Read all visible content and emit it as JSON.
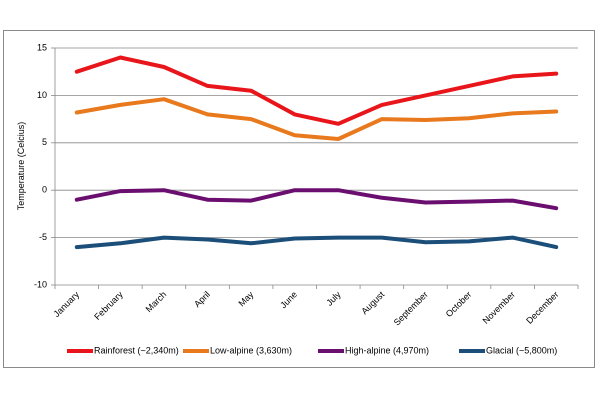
{
  "chart_data": {
    "type": "line",
    "title": "",
    "xlabel": "",
    "ylabel": "Temperature (Celcius)",
    "ylim": [
      -10,
      15
    ],
    "yticks": [
      -10,
      -5,
      0,
      5,
      10,
      15
    ],
    "grid": "horizontal",
    "legend_position": "bottom",
    "categories": [
      "January",
      "February",
      "March",
      "April",
      "May",
      "June",
      "July",
      "August",
      "September",
      "October",
      "November",
      "December"
    ],
    "series": [
      {
        "name": "Rainforest (~2,340m)",
        "color": "#e8161b",
        "values": [
          12.5,
          14.0,
          13.0,
          11.0,
          10.5,
          8.0,
          7.0,
          9.0,
          10.0,
          11.0,
          12.0,
          12.3
        ]
      },
      {
        "name": "Low-alpine (3,630m)",
        "color": "#e8791d",
        "values": [
          8.2,
          9.0,
          9.6,
          8.0,
          7.5,
          5.8,
          5.4,
          7.5,
          7.4,
          7.6,
          8.1,
          8.3
        ]
      },
      {
        "name": "High-alpine (4,970m)",
        "color": "#6a0f6f",
        "values": [
          -1.0,
          -0.1,
          0.0,
          -1.0,
          -1.1,
          0.0,
          0.0,
          -0.8,
          -1.3,
          -1.2,
          -1.1,
          -1.9
        ]
      },
      {
        "name": "Glacial (~5,800m)",
        "color": "#1c4e7a",
        "values": [
          -6.0,
          -5.6,
          -5.0,
          -5.2,
          -5.6,
          -5.1,
          -5.0,
          -5.0,
          -5.5,
          -5.4,
          -5.0,
          -6.0
        ]
      }
    ]
  }
}
